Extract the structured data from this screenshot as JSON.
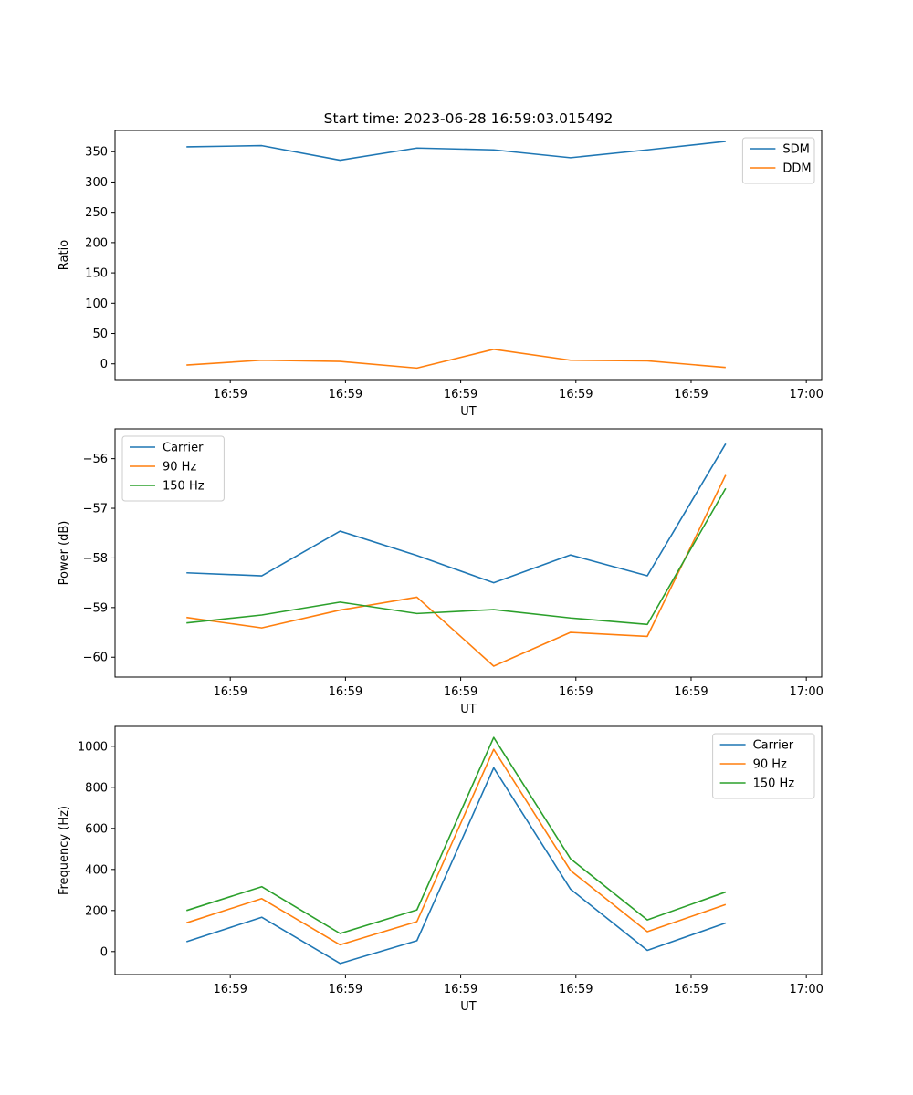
{
  "figure_title": "Start time: 2023-06-28 16:59:03.015492",
  "chart_data": [
    {
      "type": "line",
      "title": "Start time: 2023-06-28 16:59:03.015492",
      "xlabel": "UT",
      "ylabel": "Ratio",
      "x_tick_labels": [
        "16:59",
        "16:59",
        "16:59",
        "16:59",
        "16:59",
        "17:00"
      ],
      "y_ticks": [
        0,
        50,
        100,
        150,
        200,
        250,
        300,
        350
      ],
      "ylim": [
        -26,
        385
      ],
      "legend_position": "upper right",
      "series": [
        {
          "name": "SDM",
          "color": "#1f77b4",
          "values": [
            358,
            360,
            336,
            356,
            353,
            340,
            353,
            367
          ]
        },
        {
          "name": "DDM",
          "color": "#ff7f0e",
          "values": [
            -2,
            6,
            4,
            -7,
            24,
            6,
            5,
            -6
          ]
        }
      ]
    },
    {
      "type": "line",
      "title": "",
      "xlabel": "UT",
      "ylabel": "Power (dB)",
      "x_tick_labels": [
        "16:59",
        "16:59",
        "16:59",
        "16:59",
        "16:59",
        "17:00"
      ],
      "y_ticks": [
        -60,
        -59,
        -58,
        -57,
        -56
      ],
      "ylim": [
        -60.4,
        -55.4
      ],
      "legend_position": "upper left",
      "series": [
        {
          "name": "Carrier",
          "color": "#1f77b4",
          "values": [
            -58.3,
            -58.36,
            -57.46,
            -57.95,
            -58.5,
            -57.94,
            -58.36,
            -55.7
          ]
        },
        {
          "name": "90 Hz",
          "color": "#ff7f0e",
          "values": [
            -59.2,
            -59.41,
            -59.05,
            -58.79,
            -60.18,
            -59.5,
            -59.58,
            -56.33
          ]
        },
        {
          "name": "150 Hz",
          "color": "#2ca02c",
          "values": [
            -59.31,
            -59.15,
            -58.89,
            -59.12,
            -59.04,
            -59.21,
            -59.34,
            -56.6
          ]
        }
      ]
    },
    {
      "type": "line",
      "title": "",
      "xlabel": "UT",
      "ylabel": "Frequency (Hz)",
      "x_tick_labels": [
        "16:59",
        "16:59",
        "16:59",
        "16:59",
        "16:59",
        "17:00"
      ],
      "y_ticks": [
        0,
        200,
        400,
        600,
        800,
        1000
      ],
      "ylim": [
        -112,
        1097
      ],
      "legend_position": "upper right",
      "series": [
        {
          "name": "Carrier",
          "color": "#1f77b4",
          "values": [
            48,
            167,
            -58,
            53,
            895,
            304,
            6,
            139
          ]
        },
        {
          "name": "90 Hz",
          "color": "#ff7f0e",
          "values": [
            140,
            258,
            33,
            146,
            985,
            395,
            97,
            229
          ]
        },
        {
          "name": "150 Hz",
          "color": "#2ca02c",
          "values": [
            200,
            316,
            88,
            203,
            1043,
            452,
            154,
            290
          ]
        }
      ]
    }
  ]
}
